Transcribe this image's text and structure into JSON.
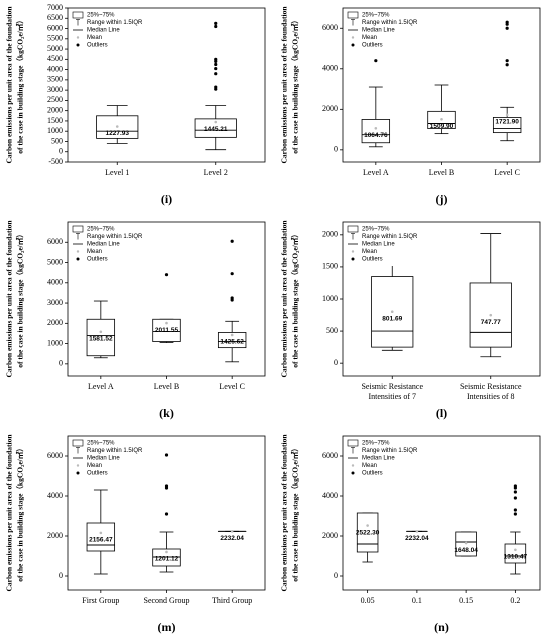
{
  "chart_data": [
    {
      "type": "box",
      "panel": "(i)",
      "y_label": [
        "Carbon emissions per unit area of the foundation",
        "of the case in building stage（kgCO₂e/㎡）"
      ],
      "legend": [
        "25%~75%",
        "Range within 1.5IQR",
        "Median Line",
        "Mean",
        "Outliers"
      ],
      "categories": [
        "Level 1",
        "Level 2"
      ],
      "ylim": [
        -500,
        7000
      ],
      "yticks": [
        -500,
        0,
        500,
        1000,
        1500,
        2000,
        2500,
        3000,
        3500,
        4000,
        4500,
        5000,
        5500,
        6000,
        6500,
        7000
      ],
      "boxes": [
        {
          "low": 400,
          "q1": 650,
          "median": 1000,
          "q3": 1750,
          "high": 2250,
          "mean": 1227.93,
          "mean_label": "1227.93",
          "outliers": []
        },
        {
          "low": 100,
          "q1": 700,
          "median": 1050,
          "q3": 1600,
          "high": 2250,
          "mean": 1445.21,
          "mean_label": "1445.21",
          "outliers": [
            3050,
            3150,
            3800,
            4050,
            4250,
            4400,
            4500,
            6100,
            6250
          ]
        }
      ]
    },
    {
      "type": "box",
      "panel": "(j)",
      "y_label": [
        "Carbon emissions per unit area of the foundation",
        "of the case in building stage（kgCO₂e/㎡）"
      ],
      "legend": [
        "25%~75%",
        "Range within 1.5IQR",
        "Median Line",
        "Mean",
        "Outliers"
      ],
      "categories": [
        "Level A",
        "Level B",
        "Level C"
      ],
      "ylim": [
        -600,
        7000
      ],
      "yticks": [
        0,
        2000,
        4000,
        6000
      ],
      "boxes": [
        {
          "low": 150,
          "q1": 350,
          "median": 750,
          "q3": 1500,
          "high": 3100,
          "mean": 1064.76,
          "mean_label": "1064.76",
          "outliers": [
            4400
          ]
        },
        {
          "low": 800,
          "q1": 1050,
          "median": 1300,
          "q3": 1900,
          "high": 3200,
          "mean": 1509.9,
          "mean_label": "1509.90",
          "outliers": []
        },
        {
          "low": 450,
          "q1": 850,
          "median": 1050,
          "q3": 1600,
          "high": 2100,
          "mean": 1721.9,
          "mean_label": "1721.90",
          "outliers": [
            4200,
            4400,
            6000,
            6200,
            6300
          ]
        }
      ]
    },
    {
      "type": "box",
      "panel": "(k)",
      "y_label": [
        "Carbon emissions per unit area of the foundation",
        "of the case in building stage（kgCO₂e/㎡）"
      ],
      "legend": [
        "25%~75%",
        "Range within 1.5IQR",
        "Median Line",
        "Mean",
        "Outliers"
      ],
      "categories": [
        "Level A",
        "Level B",
        "Level C"
      ],
      "ylim": [
        -600,
        7000
      ],
      "yticks": [
        0,
        1000,
        2000,
        3000,
        4000,
        5000,
        6000
      ],
      "boxes": [
        {
          "low": 300,
          "q1": 400,
          "median": 1400,
          "q3": 2200,
          "high": 3100,
          "mean": 1581.52,
          "mean_label": "1581.52",
          "outliers": []
        },
        {
          "low": 1050,
          "q1": 1100,
          "median": 1600,
          "q3": 2200,
          "high": 2200,
          "mean": 2011.55,
          "mean_label": "2011.55",
          "outliers": [
            4400
          ]
        },
        {
          "low": 100,
          "q1": 800,
          "median": 1100,
          "q3": 1550,
          "high": 2100,
          "mean": 1425.62,
          "mean_label": "1425.62",
          "outliers": [
            3150,
            3250,
            4450,
            6050
          ]
        }
      ]
    },
    {
      "type": "box",
      "panel": "(l)",
      "y_label": [
        "Carbon emissions per unit area of the foundation",
        "of the case in building stage（kgCO₂e/㎡）"
      ],
      "legend": [
        "25%~75%",
        "Range within 1.5IQR",
        "Median Line",
        "Mean",
        "Outliers"
      ],
      "categories": [
        "Seismic Resistance Intensities of 7",
        "Seismic Resistance Intensities of 8"
      ],
      "ylim": [
        -200,
        2200
      ],
      "yticks": [
        0,
        500,
        1000,
        1500,
        2000
      ],
      "boxes": [
        {
          "low": 200,
          "q1": 250,
          "median": 500,
          "q3": 1350,
          "high": 1980,
          "mean": 801.69,
          "mean_label": "801.69",
          "outliers": []
        },
        {
          "low": 100,
          "q1": 250,
          "median": 480,
          "q3": 1250,
          "high": 2020,
          "mean": 747.77,
          "mean_label": "747.77",
          "outliers": []
        }
      ]
    },
    {
      "type": "box",
      "panel": "(m)",
      "y_label": [
        "Carbon emissions per unit area of the foundation",
        "of the case in building stage（kgCO₂e/㎡）"
      ],
      "legend": [
        "25%~75%",
        "Range within 1.5IQR",
        "Median Line",
        "Mean",
        "Outliers"
      ],
      "categories": [
        "First Group",
        "Second Group",
        "Third Group"
      ],
      "ylim": [
        -700,
        7000
      ],
      "yticks": [
        0,
        2000,
        4000,
        6000
      ],
      "boxes": [
        {
          "low": 100,
          "q1": 1250,
          "median": 1550,
          "q3": 2650,
          "high": 4300,
          "mean": 2156.47,
          "mean_label": "2156.47",
          "outliers": [
            6150,
            6300
          ]
        },
        {
          "low": 200,
          "q1": 500,
          "median": 950,
          "q3": 1350,
          "high": 2200,
          "mean": 1201.12,
          "mean_label": "1201.12",
          "outliers": [
            3100,
            4400,
            4500,
            6050
          ]
        },
        {
          "low": 2232.04,
          "q1": 2232.04,
          "median": 2232.04,
          "q3": 2232.04,
          "high": 2232.04,
          "mean": 2232.04,
          "mean_label": "2232.04",
          "outliers": []
        }
      ]
    },
    {
      "type": "box",
      "panel": "(n)",
      "y_label": [
        "Carbon emissions per unit area of the foundation",
        "of the case in building stage（kgCO₂e/㎡）"
      ],
      "legend": [
        "25%~75%",
        "Range within 1.5IQR",
        "Median Line",
        "Mean",
        "Outliers"
      ],
      "categories": [
        "0.05",
        "0.1",
        "0.15",
        "0.2"
      ],
      "ylim": [
        -700,
        7000
      ],
      "yticks": [
        0,
        2000,
        4000,
        6000
      ],
      "boxes": [
        {
          "low": 700,
          "q1": 1200,
          "median": 1600,
          "q3": 3150,
          "high": 3150,
          "mean": 2522.3,
          "mean_label": "2522.30",
          "outliers": [
            6200,
            6300
          ]
        },
        {
          "low": 2232.04,
          "q1": 2232.04,
          "median": 2232.04,
          "q3": 2232.04,
          "high": 2232.04,
          "mean": 2232.04,
          "mean_label": "2232.04",
          "outliers": []
        },
        {
          "low": 1000,
          "q1": 1000,
          "median": 1700,
          "q3": 2200,
          "high": 2200,
          "mean": 1648.04,
          "mean_label": "1648.04",
          "outliers": []
        },
        {
          "low": 100,
          "q1": 650,
          "median": 1000,
          "q3": 1600,
          "high": 2200,
          "mean": 1310.47,
          "mean_label": "1310.47",
          "outliers": [
            3100,
            3300,
            3900,
            4200,
            4400,
            4500
          ]
        }
      ]
    }
  ]
}
